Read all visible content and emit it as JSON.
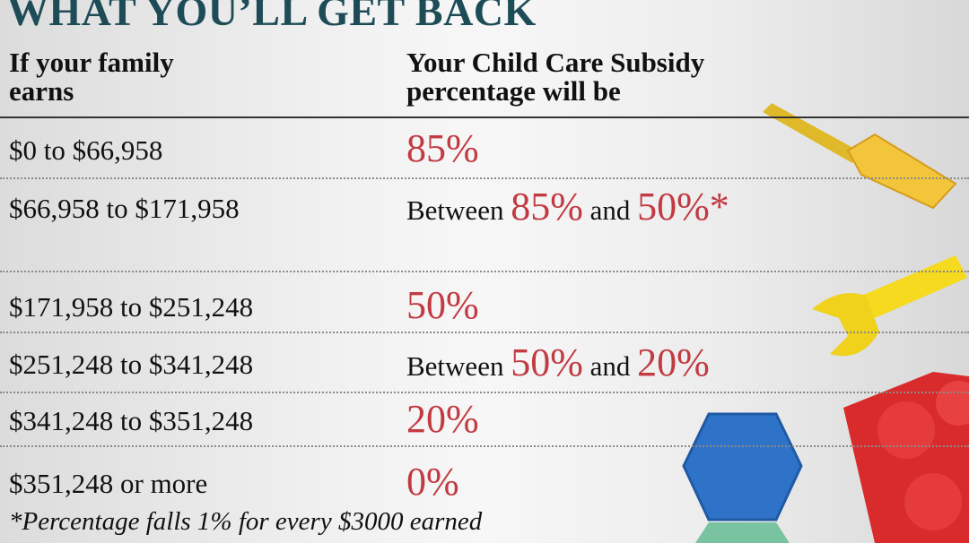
{
  "title": "WHAT YOU’LL GET BACK",
  "header": {
    "income": [
      "If your family",
      "earns"
    ],
    "subsidy": [
      "Your Child Care Subsidy",
      "percentage will be"
    ]
  },
  "rows": [
    {
      "income": "$0 to $66,958",
      "subsidy": [
        {
          "text": "85%",
          "emphasis": true
        }
      ]
    },
    {
      "income": "$66,958 to $171,958",
      "subsidy": [
        {
          "text": "Between",
          "emphasis": false
        },
        {
          "text": "85%",
          "emphasis": true
        },
        {
          "text": "and",
          "emphasis": false
        },
        {
          "text": "50%*",
          "emphasis": true
        }
      ]
    },
    {
      "income": "$171,958 to $251,248",
      "subsidy": [
        {
          "text": "50%",
          "emphasis": true
        }
      ]
    },
    {
      "income": "$251,248 to $341,248",
      "subsidy": [
        {
          "text": "Between",
          "emphasis": false
        },
        {
          "text": "50%",
          "emphasis": true
        },
        {
          "text": "and",
          "emphasis": false
        },
        {
          "text": "20%",
          "emphasis": true
        }
      ]
    },
    {
      "income": "$341,248 to $351,248",
      "subsidy": [
        {
          "text": "20%",
          "emphasis": true
        }
      ]
    },
    {
      "income": "$351,248 or more",
      "subsidy": [
        {
          "text": "0%",
          "emphasis": true
        }
      ]
    }
  ],
  "footnote": "*Percentage falls 1% for every $3000 earned"
}
